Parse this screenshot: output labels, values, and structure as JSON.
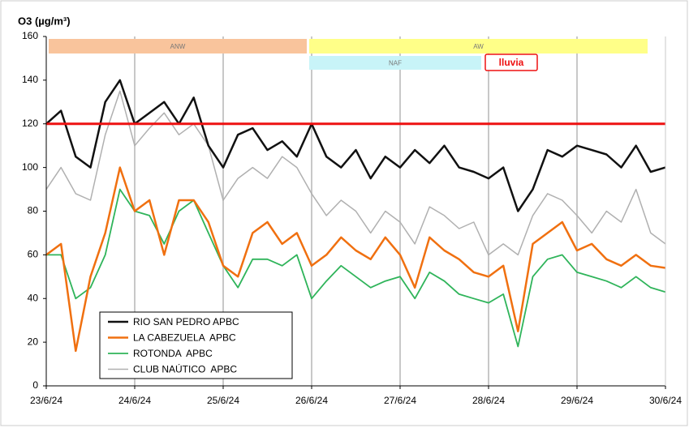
{
  "chart_data": {
    "type": "line",
    "title": "O3 (µg/m³)",
    "categories": [
      "23/6/24",
      null,
      null,
      null,
      null,
      null,
      "24/6/24",
      null,
      null,
      null,
      null,
      null,
      "25/6/24",
      null,
      null,
      null,
      null,
      null,
      "26/6/24",
      null,
      null,
      null,
      null,
      null,
      "27/6/24",
      null,
      null,
      null,
      null,
      null,
      "28/6/24",
      null,
      null,
      null,
      null,
      null,
      "29/6/24",
      null,
      null,
      null,
      null,
      null,
      "30/6/24"
    ],
    "series": [
      {
        "name": "RIO SAN PEDRO APBC",
        "color": "#111111",
        "values": [
          120,
          126,
          105,
          100,
          130,
          140,
          120,
          125,
          130,
          120,
          132,
          110,
          100,
          115,
          118,
          108,
          112,
          105,
          120,
          105,
          100,
          108,
          95,
          105,
          100,
          108,
          102,
          110,
          100,
          98,
          95,
          100,
          80,
          90,
          108,
          105,
          110,
          108,
          106,
          100,
          110,
          98,
          100
        ]
      },
      {
        "name": "LA CABEZUELA  APBC",
        "color": "#f07010",
        "values": [
          60,
          65,
          16,
          50,
          70,
          100,
          80,
          85,
          60,
          85,
          85,
          75,
          55,
          50,
          70,
          75,
          65,
          70,
          55,
          60,
          68,
          62,
          58,
          68,
          60,
          45,
          68,
          62,
          58,
          52,
          50,
          55,
          25,
          65,
          70,
          75,
          62,
          65,
          58,
          55,
          60,
          55,
          54
        ]
      },
      {
        "name": "ROTONDA  APBC",
        "color": "#2fb45a",
        "values": [
          60,
          60,
          40,
          45,
          60,
          90,
          80,
          78,
          65,
          80,
          85,
          70,
          55,
          45,
          58,
          58,
          55,
          60,
          40,
          48,
          55,
          50,
          45,
          48,
          50,
          40,
          52,
          48,
          42,
          40,
          38,
          42,
          18,
          50,
          58,
          60,
          52,
          50,
          48,
          45,
          50,
          45,
          43
        ]
      },
      {
        "name": "CLUB NAÚTICO  APBC",
        "color": "#b0b0b0",
        "values": [
          90,
          100,
          88,
          85,
          115,
          135,
          110,
          118,
          125,
          115,
          120,
          110,
          85,
          95,
          100,
          95,
          105,
          100,
          88,
          78,
          85,
          80,
          70,
          80,
          75,
          65,
          82,
          78,
          72,
          75,
          60,
          65,
          60,
          78,
          88,
          85,
          78,
          70,
          80,
          75,
          90,
          70,
          65
        ]
      }
    ],
    "ylim": [
      0,
      160
    ],
    "yticks": [
      0,
      20,
      40,
      60,
      80,
      100,
      120,
      140,
      160
    ],
    "grid": "x",
    "threshold": {
      "value": 120,
      "color": "#ee1111"
    },
    "bands": [
      {
        "label": "ANW",
        "color": "#f9c49c"
      },
      {
        "label": "AW",
        "color": "#ffff88"
      },
      {
        "label": "NAF",
        "color": "#c8f4f8"
      },
      {
        "label": "lluvia",
        "color": "#ee1111"
      }
    ]
  }
}
